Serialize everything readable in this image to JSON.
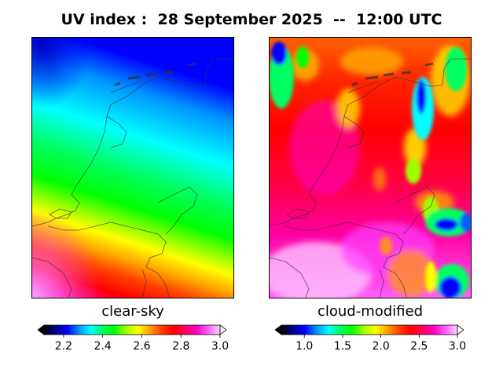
{
  "title": "UV index :  28 September 2025  --  12:00 UTC",
  "panels": {
    "left": {
      "label": "clear-sky"
    },
    "right": {
      "label": "cloud-modified"
    }
  },
  "colorbars": {
    "left": {
      "min": 2.1,
      "max": 3.0,
      "ticks": [
        "2.2",
        "2.4",
        "2.6",
        "2.8",
        "3.0"
      ],
      "tick_values": [
        2.2,
        2.4,
        2.6,
        2.8,
        3.0
      ]
    },
    "right": {
      "min": 0.7,
      "max": 3.0,
      "ticks": [
        "1.0",
        "1.5",
        "2.0",
        "2.5",
        "3.0"
      ],
      "tick_values": [
        1.0,
        1.5,
        2.0,
        2.5,
        3.0
      ]
    }
  },
  "palette": [
    "#000000",
    "#00008b",
    "#0000ff",
    "#0096ff",
    "#00ffff",
    "#00ff60",
    "#00ff00",
    "#a0ff00",
    "#ffff00",
    "#ffa000",
    "#ff4000",
    "#ff0000",
    "#ff0060",
    "#ff00c0",
    "#ff60ff",
    "#ffd8ff"
  ]
}
